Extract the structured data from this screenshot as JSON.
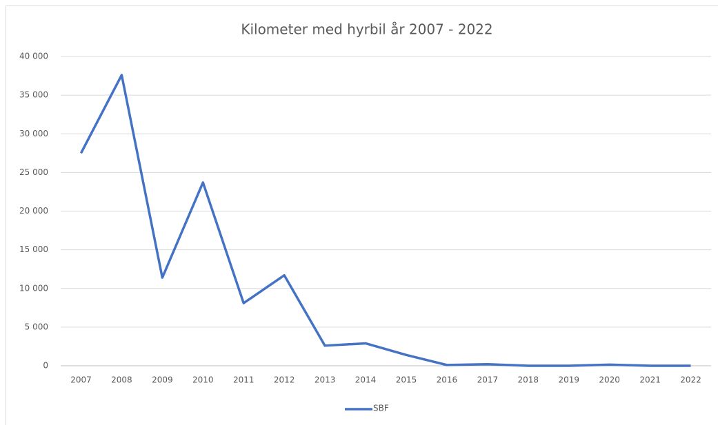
{
  "chart_data": {
    "type": "line",
    "title": "Kilometer med hyrbil år 2007 -  2022",
    "categories": [
      "2007",
      "2008",
      "2009",
      "2010",
      "2011",
      "2012",
      "2013",
      "2014",
      "2015",
      "2016",
      "2017",
      "2018",
      "2019",
      "2020",
      "2021",
      "2022"
    ],
    "series": [
      {
        "name": "SBF",
        "color": "#4472c4",
        "values": [
          27500,
          37600,
          11400,
          23700,
          8100,
          11700,
          2600,
          2900,
          1400,
          100,
          200,
          0,
          0,
          150,
          0,
          0
        ]
      }
    ],
    "ylim": [
      0,
      40000
    ],
    "yticks": [
      0,
      {
        "value": 5000,
        "label": "5 000"
      },
      {
        "value": 10000,
        "label": "10 000"
      },
      {
        "value": 15000,
        "label": "15 000"
      },
      {
        "value": 20000,
        "label": "20 000"
      },
      {
        "value": 25000,
        "label": "25 000"
      },
      {
        "value": 30000,
        "label": "30 000"
      },
      {
        "value": 35000,
        "label": "35 000"
      },
      {
        "value": 40000,
        "label": "40 000"
      }
    ],
    "grid": true,
    "legend": "bottom"
  }
}
